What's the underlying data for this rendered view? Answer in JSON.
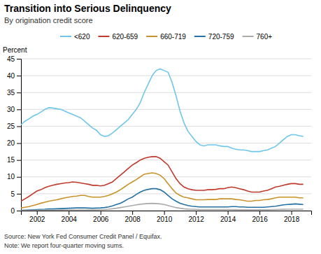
{
  "chart_data": {
    "type": "line",
    "title": "Transition into Serious Delinquency",
    "subtitle": "By origination credit score",
    "ylabel": "Percent",
    "source": "Source: New York Fed Consumer Credit Panel / Equifax.",
    "note": "Note: We report four-quarter moving sums.",
    "xlim": [
      2001.0,
      2019.25
    ],
    "xticks": [
      2002,
      2004,
      2006,
      2008,
      2010,
      2012,
      2014,
      2016,
      2018
    ],
    "ylim": [
      0,
      45
    ],
    "yticks": [
      0,
      5,
      10,
      15,
      20,
      25,
      30,
      35,
      40,
      45
    ],
    "grid": true,
    "legend": "top",
    "x": [
      2001.0,
      2001.25,
      2001.5,
      2001.75,
      2002.0,
      2002.25,
      2002.5,
      2002.75,
      2003.0,
      2003.25,
      2003.5,
      2003.75,
      2004.0,
      2004.25,
      2004.5,
      2004.75,
      2005.0,
      2005.25,
      2005.5,
      2005.75,
      2006.0,
      2006.25,
      2006.5,
      2006.75,
      2007.0,
      2007.25,
      2007.5,
      2007.75,
      2008.0,
      2008.25,
      2008.5,
      2008.75,
      2009.0,
      2009.25,
      2009.5,
      2009.75,
      2010.0,
      2010.25,
      2010.5,
      2010.75,
      2011.0,
      2011.25,
      2011.5,
      2011.75,
      2012.0,
      2012.25,
      2012.5,
      2012.75,
      2013.0,
      2013.25,
      2013.5,
      2013.75,
      2014.0,
      2014.25,
      2014.5,
      2014.75,
      2015.0,
      2015.25,
      2015.5,
      2015.75,
      2016.0,
      2016.25,
      2016.5,
      2016.75,
      2017.0,
      2017.25,
      2017.5,
      2017.75,
      2018.0,
      2018.25,
      2018.5,
      2018.75
    ],
    "series": [
      {
        "name": "<620",
        "color": "#6EC6EA",
        "values": [
          25.5,
          26.5,
          27.2,
          28.0,
          28.5,
          29.2,
          30.0,
          30.5,
          30.4,
          30.2,
          30.0,
          29.5,
          29.0,
          28.5,
          28.0,
          27.5,
          26.5,
          25.5,
          24.5,
          23.8,
          22.5,
          22.0,
          22.2,
          23.0,
          24.0,
          25.0,
          26.0,
          27.0,
          28.5,
          30.0,
          32.0,
          35.0,
          37.5,
          40.0,
          41.5,
          42.0,
          41.5,
          41.0,
          38.0,
          34.0,
          29.5,
          26.0,
          23.5,
          22.0,
          20.5,
          19.5,
          19.2,
          19.5,
          19.5,
          19.5,
          19.2,
          19.0,
          19.0,
          18.5,
          18.2,
          18.0,
          18.0,
          17.8,
          17.5,
          17.5,
          17.5,
          17.8,
          18.0,
          18.5,
          19.0,
          20.0,
          21.0,
          22.0,
          22.5,
          22.5,
          22.2,
          22.0
        ]
      },
      {
        "name": "620-659",
        "color": "#C0392B",
        "values": [
          2.8,
          3.5,
          4.2,
          5.0,
          5.8,
          6.2,
          6.8,
          7.2,
          7.5,
          7.8,
          8.0,
          8.2,
          8.3,
          8.5,
          8.4,
          8.2,
          8.0,
          7.8,
          7.5,
          7.5,
          7.3,
          7.5,
          8.0,
          8.5,
          9.5,
          10.5,
          11.5,
          12.5,
          13.5,
          14.2,
          15.0,
          15.5,
          15.8,
          16.0,
          16.0,
          15.5,
          14.5,
          13.5,
          11.5,
          9.5,
          8.0,
          7.0,
          6.5,
          6.2,
          6.0,
          6.0,
          6.0,
          6.2,
          6.2,
          6.3,
          6.5,
          6.5,
          6.8,
          7.0,
          6.8,
          6.5,
          6.2,
          5.8,
          5.5,
          5.5,
          5.5,
          5.8,
          6.0,
          6.5,
          7.0,
          7.2,
          7.5,
          7.8,
          8.0,
          8.0,
          7.8,
          7.8
        ]
      },
      {
        "name": "660-719",
        "color": "#C8922A",
        "values": [
          0.8,
          1.0,
          1.2,
          1.5,
          1.8,
          2.2,
          2.5,
          2.8,
          3.0,
          3.2,
          3.5,
          3.8,
          4.0,
          4.2,
          4.3,
          4.5,
          4.5,
          4.2,
          4.0,
          4.0,
          4.0,
          4.2,
          4.5,
          5.0,
          5.5,
          6.2,
          7.0,
          7.8,
          8.5,
          9.2,
          10.0,
          10.8,
          11.0,
          11.2,
          11.0,
          10.5,
          9.5,
          8.0,
          6.5,
          5.2,
          4.5,
          4.0,
          3.8,
          3.5,
          3.2,
          3.2,
          3.2,
          3.3,
          3.3,
          3.3,
          3.5,
          3.5,
          3.5,
          3.5,
          3.3,
          3.2,
          3.0,
          2.8,
          2.8,
          3.0,
          3.0,
          3.2,
          3.3,
          3.5,
          3.8,
          4.0,
          4.0,
          4.0,
          4.0,
          4.0,
          3.8,
          3.8
        ]
      },
      {
        "name": "720-759",
        "color": "#2471A3",
        "values": [
          0.1,
          0.15,
          0.2,
          0.25,
          0.3,
          0.35,
          0.4,
          0.5,
          0.5,
          0.55,
          0.6,
          0.65,
          0.7,
          0.75,
          0.8,
          0.8,
          0.8,
          0.75,
          0.7,
          0.75,
          0.8,
          0.9,
          1.1,
          1.4,
          1.8,
          2.2,
          2.8,
          3.5,
          4.0,
          4.8,
          5.5,
          6.0,
          6.3,
          6.5,
          6.5,
          6.2,
          5.5,
          4.5,
          3.5,
          2.8,
          2.2,
          1.8,
          1.5,
          1.3,
          1.2,
          1.1,
          1.1,
          1.1,
          1.1,
          1.1,
          1.1,
          1.1,
          1.1,
          1.2,
          1.2,
          1.1,
          1.1,
          1.0,
          1.0,
          1.0,
          1.0,
          1.0,
          1.1,
          1.2,
          1.3,
          1.5,
          1.7,
          1.8,
          1.9,
          2.0,
          1.9,
          1.8
        ]
      },
      {
        "name": "760+",
        "color": "#AAAAAA",
        "values": [
          0.05,
          0.07,
          0.08,
          0.1,
          0.1,
          0.12,
          0.13,
          0.15,
          0.15,
          0.17,
          0.18,
          0.2,
          0.2,
          0.22,
          0.22,
          0.22,
          0.22,
          0.2,
          0.2,
          0.22,
          0.25,
          0.3,
          0.4,
          0.55,
          0.7,
          0.9,
          1.1,
          1.3,
          1.5,
          1.7,
          1.9,
          2.0,
          2.1,
          2.15,
          2.1,
          2.0,
          1.8,
          1.5,
          1.2,
          0.9,
          0.7,
          0.55,
          0.45,
          0.4,
          0.35,
          0.32,
          0.3,
          0.3,
          0.3,
          0.3,
          0.3,
          0.3,
          0.3,
          0.3,
          0.28,
          0.27,
          0.25,
          0.25,
          0.25,
          0.25,
          0.25,
          0.25,
          0.27,
          0.3,
          0.32,
          0.35,
          0.38,
          0.4,
          0.42,
          0.42,
          0.4,
          0.4
        ]
      }
    ]
  }
}
